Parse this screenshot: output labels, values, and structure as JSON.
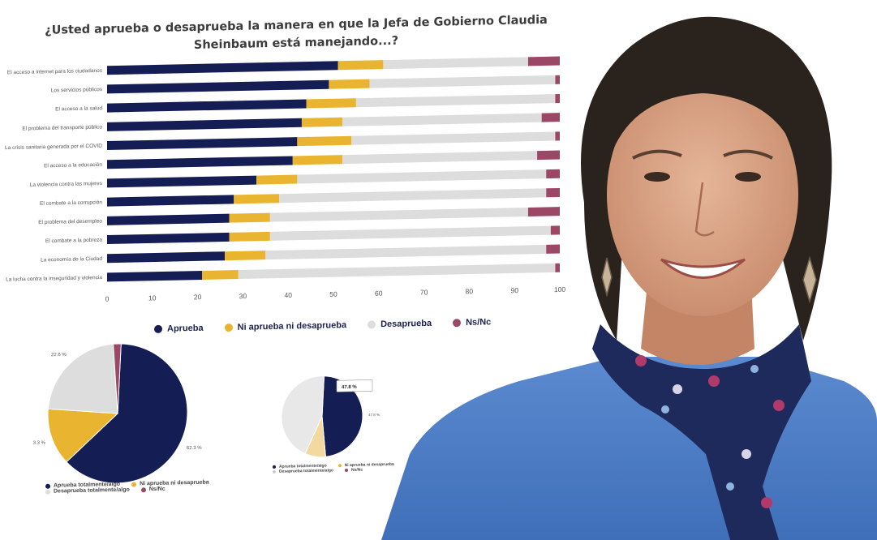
{
  "chart_data": [
    {
      "type": "bar",
      "stacked": true,
      "orientation": "horizontal",
      "title": "¿Usted aprueba o desaprueba la manera en que la Jefa de Gobierno Claudia Sheinbaum está manejando...?",
      "categories": [
        "El acceso a internet para los ciudadanos",
        "Los servicios públicos",
        "El acceso a la salud",
        "El problema del transporte público",
        "La crisis sanitaria generada por el COVID",
        "El acceso a la educación",
        "La violencia contra las mujeres",
        "El combate a la corrupción",
        "El problema del desempleo",
        "El combate a la pobreza",
        "La economía de la Ciudad",
        "La lucha contra la inseguridad y violencia"
      ],
      "series": [
        {
          "name": "Aprueba",
          "color": "#141e55",
          "values": [
            51,
            49,
            44,
            43,
            42,
            41,
            33,
            28,
            27,
            27,
            26,
            21
          ]
        },
        {
          "name": "Ni aprueba ni desaprueba",
          "color": "#e9b430",
          "values": [
            10,
            9,
            11,
            9,
            12,
            11,
            9,
            10,
            9,
            9,
            9,
            8
          ]
        },
        {
          "name": "Desaprueba",
          "color": "#dddddd",
          "values": [
            32,
            41,
            44,
            44,
            45,
            43,
            55,
            59,
            57,
            62,
            62,
            70
          ]
        },
        {
          "name": "Ns/Nc",
          "color": "#9a4865",
          "values": [
            7,
            1,
            1,
            4,
            1,
            5,
            3,
            3,
            7,
            2,
            3,
            1
          ]
        }
      ],
      "xlim": [
        0,
        100
      ],
      "xticks": [
        0,
        10,
        20,
        30,
        40,
        50,
        60,
        70,
        80,
        90,
        100
      ],
      "legend_position": "bottom"
    },
    {
      "type": "pie",
      "slices": [
        {
          "label": "Aprueba totalmente/algo",
          "value": 62.3,
          "value_label": "62.3 %",
          "color": "#141e55"
        },
        {
          "label": "Ni aprueba ni desaprueba",
          "value": 13.3,
          "value_label": "13.3 %",
          "color": "#e9b430"
        },
        {
          "label": "Desaprueba totalmente/algo",
          "value": 22.6,
          "value_label": "22.6 %",
          "color": "#dddddd"
        },
        {
          "label": "Ns/Nc",
          "value": 1.8,
          "value_label": "1.8 %",
          "color": "#9a4865"
        }
      ],
      "legend": [
        "Aprueba totalmente/algo",
        "Ni aprueba ni desaprueba",
        "Desaprueba totalmente/algo",
        "Ns/Nc"
      ]
    },
    {
      "type": "pie",
      "slices": [
        {
          "label": "Aprueba totalmente/algo",
          "value": 47.8,
          "value_label": "47.8 %",
          "color": "#141e55"
        },
        {
          "label": "Ni aprueba ni desaprueba",
          "value": 8.3,
          "value_label": "",
          "color": "#f3d9a0"
        },
        {
          "label": "Desaprueba totalmente/algo",
          "value": 43.9,
          "value_label": "",
          "color": "#e8e8e8"
        }
      ],
      "tooltip_label": "47.8 %",
      "legend": [
        "Aprueba totalmente/algo",
        "Ni aprueba ni desaprueba",
        "Desaprueba totalmente/algo",
        "Ns/Nc"
      ]
    }
  ],
  "photo": {
    "subject": "Claudia Sheinbaum",
    "colors": {
      "sweater": "#4f7fc4",
      "skin": "#d9a588",
      "hair": "#2a221d",
      "scarf": "#1f2a5c",
      "scarf_accent": "#b03a6a"
    }
  }
}
